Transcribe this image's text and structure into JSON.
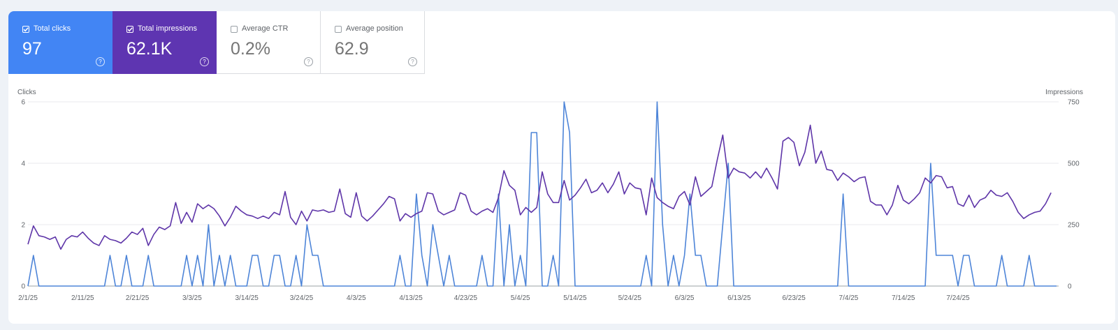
{
  "metrics": [
    {
      "label": "Total clicks",
      "value": "97",
      "checked": true,
      "color": "#4285f4"
    },
    {
      "label": "Total impressions",
      "value": "62.1K",
      "checked": true,
      "color": "#5e35b1"
    },
    {
      "label": "Average CTR",
      "value": "0.2%",
      "checked": false
    },
    {
      "label": "Average position",
      "value": "62.9",
      "checked": false
    }
  ],
  "help_glyph": "?",
  "chart_data": {
    "type": "line",
    "left_axis_label": "Clicks",
    "right_axis_label": "Impressions",
    "left_ticks": [
      "0",
      "2",
      "4",
      "6"
    ],
    "right_ticks": [
      "0",
      "250",
      "500",
      "750"
    ],
    "ylim_left": [
      0,
      6
    ],
    "ylim_right": [
      0,
      750
    ],
    "grid": true,
    "x_start": "2/1/25",
    "x_tick_labels": [
      "2/1/25",
      "2/11/25",
      "2/21/25",
      "3/3/25",
      "3/14/25",
      "3/24/25",
      "4/3/25",
      "4/13/25",
      "4/23/25",
      "5/4/25",
      "5/14/25",
      "5/24/25",
      "6/3/25",
      "6/13/25",
      "6/23/25",
      "7/4/25",
      "7/14/25",
      "7/24/25"
    ],
    "series": [
      {
        "name": "Total clicks",
        "axis": "left",
        "color": "#4e85d8",
        "values": [
          0,
          1,
          0,
          0,
          0,
          0,
          0,
          0,
          0,
          0,
          0,
          0,
          0,
          0,
          0,
          1,
          0,
          0,
          1,
          0,
          0,
          0,
          1,
          0,
          0,
          0,
          0,
          0,
          0,
          1,
          0,
          1,
          0,
          2,
          0,
          1,
          0,
          1,
          0,
          0,
          0,
          1,
          1,
          0,
          0,
          1,
          1,
          0,
          0,
          1,
          0,
          2,
          1,
          1,
          0,
          0,
          0,
          0,
          0,
          0,
          0,
          0,
          0,
          0,
          0,
          0,
          0,
          0,
          1,
          0,
          0,
          3,
          1,
          0,
          2,
          1,
          0,
          1,
          0,
          0,
          0,
          0,
          0,
          1,
          0,
          0,
          3,
          0,
          2,
          0,
          1,
          0,
          5,
          5,
          0,
          0,
          1,
          0,
          6,
          5,
          0,
          0,
          0,
          0,
          0,
          0,
          0,
          0,
          0,
          0,
          0,
          0,
          0,
          1,
          0,
          6,
          2,
          0,
          1,
          0,
          1,
          3,
          1,
          1,
          0,
          0,
          0,
          2,
          4,
          0,
          0,
          0,
          0,
          0,
          0,
          0,
          0,
          0,
          0,
          0,
          0,
          0,
          0,
          0,
          0,
          0,
          0,
          0,
          0,
          3,
          0,
          0,
          0,
          0,
          0,
          0,
          0,
          0,
          0,
          0,
          0,
          0,
          0,
          0,
          0,
          4,
          1,
          1,
          1,
          1,
          0,
          1,
          1,
          0,
          0,
          0,
          0,
          0,
          1,
          0,
          0,
          0,
          0,
          1,
          0,
          0,
          0,
          0,
          0
        ]
      },
      {
        "name": "Total impressions",
        "axis": "right",
        "color": "#5e35a8",
        "values": [
          170,
          245,
          205,
          200,
          190,
          200,
          150,
          190,
          205,
          200,
          220,
          195,
          175,
          165,
          205,
          190,
          185,
          175,
          195,
          220,
          210,
          235,
          165,
          210,
          240,
          230,
          245,
          340,
          255,
          300,
          260,
          335,
          315,
          330,
          315,
          285,
          245,
          280,
          325,
          305,
          290,
          285,
          275,
          285,
          275,
          300,
          290,
          385,
          280,
          250,
          305,
          265,
          310,
          305,
          310,
          300,
          305,
          395,
          295,
          280,
          380,
          285,
          265,
          285,
          310,
          335,
          365,
          355,
          265,
          295,
          280,
          295,
          305,
          380,
          375,
          305,
          290,
          300,
          310,
          380,
          370,
          305,
          290,
          305,
          315,
          300,
          360,
          470,
          410,
          390,
          290,
          320,
          300,
          320,
          465,
          375,
          340,
          340,
          430,
          350,
          370,
          400,
          435,
          380,
          390,
          420,
          380,
          415,
          465,
          375,
          420,
          400,
          395,
          290,
          440,
          360,
          340,
          325,
          315,
          365,
          385,
          330,
          445,
          365,
          385,
          405,
          515,
          615,
          440,
          480,
          465,
          460,
          440,
          465,
          440,
          480,
          440,
          395,
          590,
          605,
          585,
          490,
          545,
          655,
          500,
          550,
          475,
          470,
          430,
          460,
          445,
          425,
          440,
          445,
          345,
          330,
          330,
          290,
          330,
          410,
          350,
          335,
          355,
          380,
          440,
          420,
          450,
          445,
          400,
          405,
          335,
          325,
          370,
          320,
          350,
          360,
          390,
          370,
          365,
          380,
          345,
          300,
          275,
          290,
          300,
          305,
          335,
          380
        ]
      }
    ]
  }
}
